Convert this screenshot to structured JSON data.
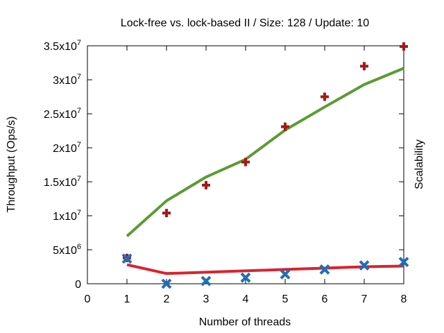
{
  "chart_data": {
    "type": "line",
    "title": "Lock-free vs. lock-based II / Size: 128 / Update: 10",
    "xlabel": "Number of threads",
    "ylabel": "Throughput (Ops/s)",
    "y2label": "Scalability",
    "xlim": [
      0,
      8
    ],
    "ylim": [
      0,
      35000000
    ],
    "x_ticks": [
      0,
      1,
      2,
      3,
      4,
      5,
      6,
      7,
      8
    ],
    "y_ticks": [
      {
        "value": 0,
        "mantissa": "0",
        "exp": ""
      },
      {
        "value": 5000000,
        "mantissa": "5x10",
        "exp": "6"
      },
      {
        "value": 10000000,
        "mantissa": "1x10",
        "exp": "7"
      },
      {
        "value": 15000000,
        "mantissa": "1.5x10",
        "exp": "7"
      },
      {
        "value": 20000000,
        "mantissa": "2x10",
        "exp": "7"
      },
      {
        "value": 25000000,
        "mantissa": "2.5x10",
        "exp": "7"
      },
      {
        "value": 30000000,
        "mantissa": "3x10",
        "exp": "7"
      },
      {
        "value": 35000000,
        "mantissa": "3.5x10",
        "exp": "7"
      }
    ],
    "grid": false,
    "series": [
      {
        "kind": "line",
        "color": "#5b9b34",
        "x": [
          1,
          2,
          3,
          4,
          5,
          6,
          7,
          8
        ],
        "values": [
          7000000,
          12200000,
          15700000,
          18300000,
          22600000,
          26000000,
          29300000,
          31700000
        ]
      },
      {
        "kind": "line",
        "color": "#d9232e",
        "x": [
          1,
          2,
          3,
          4,
          5,
          6,
          7,
          8
        ],
        "values": [
          2800000,
          1500000,
          1700000,
          1900000,
          2100000,
          2300000,
          2500000,
          2600000
        ]
      },
      {
        "kind": "marker-plus",
        "color": "#a51919",
        "x": [
          1,
          2,
          3,
          4,
          5,
          6,
          7,
          8
        ],
        "values": [
          3800000,
          10400000,
          14500000,
          17900000,
          23100000,
          27500000,
          32000000,
          34900000
        ]
      },
      {
        "kind": "marker-x",
        "color": "#1f6fb5",
        "x": [
          1,
          2,
          3,
          4,
          5,
          6,
          7,
          8
        ],
        "values": [
          3700000,
          0,
          400000,
          900000,
          1400000,
          2100000,
          2700000,
          3200000
        ]
      }
    ]
  }
}
